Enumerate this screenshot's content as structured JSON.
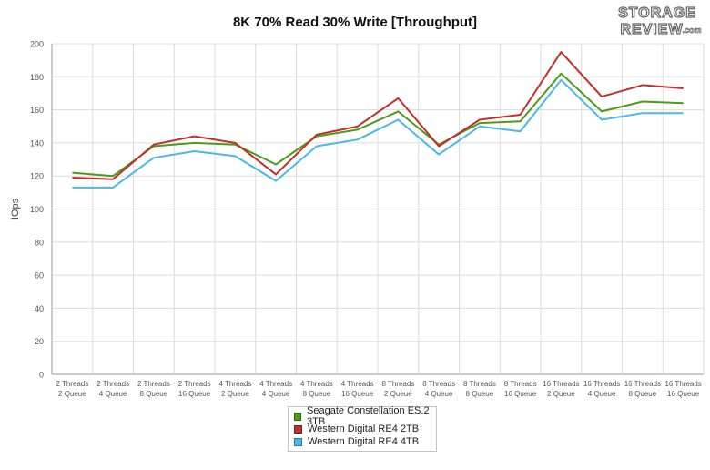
{
  "chart_data": {
    "type": "line",
    "title": "8K 70% Read 30% Write [Throughput]",
    "ylabel": "IOps",
    "xlabel": "",
    "ylim": [
      0,
      200
    ],
    "yticks": [
      0,
      20,
      40,
      60,
      80,
      100,
      120,
      140,
      160,
      180,
      200
    ],
    "grid": "vertical-and-horizontal",
    "legend_position": "bottom-center",
    "categories": [
      [
        "2 Threads",
        "2 Queue"
      ],
      [
        "2 Threads",
        "4 Queue"
      ],
      [
        "2 Threads",
        "8 Queue"
      ],
      [
        "2 Threads",
        "16 Queue"
      ],
      [
        "4 Threads",
        "2 Queue"
      ],
      [
        "4 Threads",
        "4 Queue"
      ],
      [
        "4 Threads",
        "8 Queue"
      ],
      [
        "4 Threads",
        "16 Queue"
      ],
      [
        "8 Threads",
        "2 Queue"
      ],
      [
        "8 Threads",
        "4 Queue"
      ],
      [
        "8 Threads",
        "8 Queue"
      ],
      [
        "8 Threads",
        "16 Queue"
      ],
      [
        "16 Threads",
        "2 Queue"
      ],
      [
        "16 Threads",
        "4 Queue"
      ],
      [
        "16 Threads",
        "8 Queue"
      ],
      [
        "16 Threads",
        "16 Queue"
      ]
    ],
    "series": [
      {
        "name": "Seagate Constellation ES.2 3TB",
        "color": "#4e9a1a",
        "values": [
          122,
          120,
          138,
          140,
          139,
          127,
          144,
          148,
          159,
          139,
          152,
          153,
          182,
          159,
          165,
          164
        ]
      },
      {
        "name": "Western Digital RE4 2TB",
        "color": "#c0302e",
        "values": [
          119,
          118,
          139,
          144,
          140,
          121,
          145,
          150,
          167,
          138,
          154,
          157,
          195,
          168,
          175,
          173
        ]
      },
      {
        "name": "Western Digital RE4 4TB",
        "color": "#4ab8e8",
        "values": [
          113,
          113,
          131,
          135,
          132,
          117,
          138,
          142,
          154,
          133,
          150,
          147,
          178,
          154,
          158,
          158
        ]
      }
    ]
  },
  "logo": {
    "line1": "STORAGE",
    "line2": "REVIEW",
    "suffix": ".com"
  }
}
